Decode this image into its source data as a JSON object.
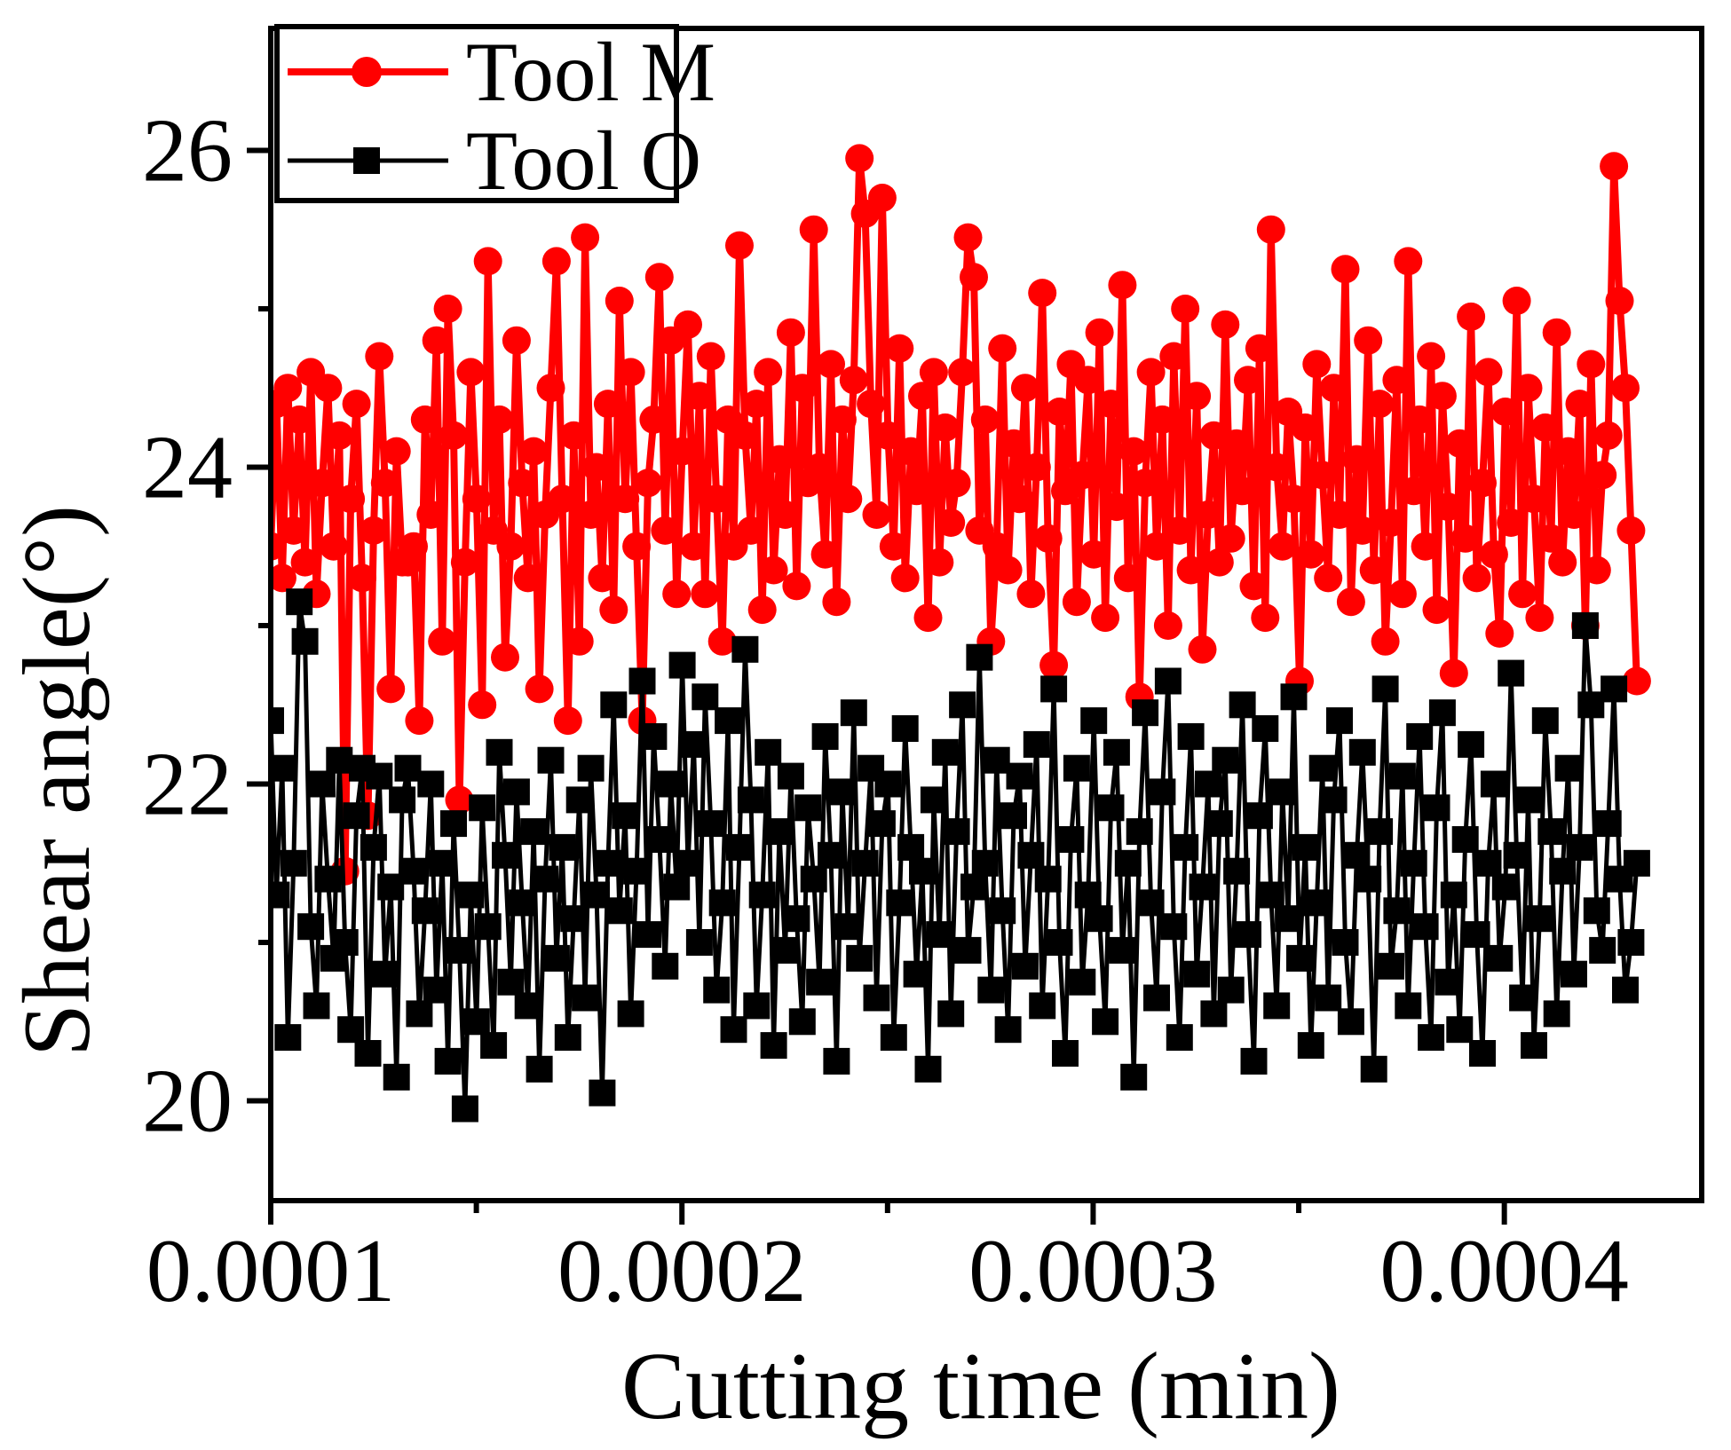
{
  "chart_data": {
    "type": "line",
    "title": "",
    "xlabel": "Cutting time (min)",
    "ylabel": "Shear angle(°)",
    "grid": false,
    "legend_position": "top-left-inside",
    "background": "#ffffff",
    "frame_color": "#000000",
    "x_axis": {
      "range": [
        0.0001,
        0.000448
      ],
      "major_ticks": [
        {
          "value": 0.0001,
          "label": "0.0001"
        },
        {
          "value": 0.0002,
          "label": "0.0002"
        },
        {
          "value": 0.0003,
          "label": "0.0003"
        },
        {
          "value": 0.0004,
          "label": "0.0004"
        }
      ],
      "minor_ticks": [
        0.00015,
        0.00025,
        0.00035
      ]
    },
    "y_axis": {
      "range": [
        19.37,
        26.77
      ],
      "major_ticks": [
        {
          "value": 26,
          "label": "26"
        },
        {
          "value": 24,
          "label": "24"
        },
        {
          "value": 22,
          "label": "22"
        },
        {
          "value": 20,
          "label": "20"
        }
      ],
      "minor_ticks": [
        25,
        23,
        21
      ]
    },
    "x_start": 0.0001,
    "x_step": 1.39e-06,
    "n_points": 240,
    "series": [
      {
        "name": "Tool M",
        "color": "#ff0000",
        "marker": "circle",
        "values": [
          23.5,
          24.4,
          23.3,
          24.5,
          23.6,
          24.3,
          23.4,
          24.6,
          23.2,
          23.9,
          24.5,
          23.5,
          24.2,
          21.45,
          23.8,
          24.4,
          23.3,
          21.8,
          23.6,
          24.7,
          23.9,
          22.6,
          24.1,
          23.4,
          23.4,
          23.5,
          22.4,
          24.3,
          23.7,
          24.8,
          22.9,
          25.0,
          24.2,
          21.9,
          23.4,
          24.6,
          23.8,
          22.5,
          25.3,
          23.6,
          24.3,
          22.8,
          23.5,
          24.8,
          23.9,
          23.3,
          24.1,
          22.6,
          23.7,
          24.5,
          25.3,
          23.8,
          22.4,
          24.2,
          22.9,
          25.45,
          23.7,
          24.0,
          23.3,
          24.4,
          23.1,
          25.05,
          23.8,
          24.6,
          23.5,
          22.4,
          23.9,
          24.3,
          25.2,
          23.6,
          24.8,
          23.2,
          24.1,
          24.9,
          23.5,
          24.45,
          23.2,
          24.7,
          23.8,
          22.9,
          24.3,
          23.5,
          25.4,
          24.2,
          23.6,
          24.4,
          23.1,
          24.6,
          23.35,
          24.05,
          23.7,
          24.85,
          23.25,
          24.5,
          23.9,
          25.5,
          24.0,
          23.45,
          24.65,
          23.15,
          24.3,
          23.8,
          24.55,
          25.95,
          25.6,
          24.4,
          23.7,
          25.7,
          24.2,
          23.5,
          24.75,
          23.3,
          24.1,
          23.85,
          24.45,
          23.05,
          24.6,
          23.4,
          24.25,
          23.65,
          23.9,
          24.6,
          25.45,
          25.2,
          23.6,
          24.3,
          22.9,
          23.5,
          24.75,
          23.35,
          24.15,
          23.8,
          24.5,
          23.2,
          24.0,
          25.1,
          23.55,
          22.75,
          24.35,
          23.85,
          24.65,
          23.15,
          23.95,
          24.55,
          23.45,
          24.85,
          23.05,
          24.4,
          23.75,
          25.15,
          23.3,
          24.1,
          22.55,
          23.9,
          24.6,
          23.5,
          24.3,
          23.0,
          24.7,
          23.6,
          25.0,
          23.35,
          24.45,
          22.85,
          23.7,
          24.2,
          23.4,
          24.9,
          23.55,
          24.15,
          23.85,
          24.55,
          23.25,
          24.75,
          23.05,
          25.5,
          24.0,
          23.5,
          24.35,
          23.8,
          22.65,
          24.25,
          23.45,
          24.65,
          23.95,
          23.3,
          24.5,
          23.7,
          25.25,
          23.15,
          24.05,
          23.6,
          24.8,
          23.35,
          24.4,
          22.9,
          23.65,
          24.55,
          23.2,
          25.3,
          23.85,
          24.3,
          23.5,
          24.7,
          23.1,
          24.45,
          23.75,
          22.7,
          24.15,
          23.55,
          24.95,
          23.3,
          23.9,
          24.6,
          23.45,
          22.95,
          24.35,
          23.65,
          25.05,
          23.2,
          24.5,
          23.8,
          23.05,
          24.25,
          23.55,
          24.85,
          23.4,
          24.1,
          23.7,
          24.4,
          23.0,
          24.65,
          23.35,
          23.95,
          24.2,
          25.9,
          25.05,
          24.5,
          23.6,
          22.65
        ]
      },
      {
        "name": "Tool O",
        "color": "#000000",
        "marker": "square",
        "values": [
          22.4,
          21.3,
          22.1,
          20.4,
          21.5,
          23.15,
          22.9,
          21.1,
          20.6,
          22.0,
          21.4,
          20.9,
          22.15,
          21.0,
          20.45,
          21.8,
          22.1,
          20.3,
          21.6,
          22.05,
          20.8,
          21.35,
          20.15,
          21.9,
          22.1,
          21.45,
          20.55,
          21.2,
          22.0,
          20.7,
          21.5,
          20.25,
          21.75,
          20.95,
          19.95,
          21.3,
          20.5,
          21.85,
          21.1,
          20.35,
          22.2,
          21.55,
          20.75,
          21.95,
          21.25,
          20.6,
          21.7,
          20.2,
          21.4,
          22.15,
          20.9,
          21.6,
          20.4,
          21.15,
          21.9,
          20.65,
          22.1,
          21.3,
          20.05,
          21.5,
          22.5,
          21.2,
          21.8,
          20.55,
          21.45,
          22.65,
          21.05,
          22.3,
          21.65,
          20.85,
          22.0,
          21.35,
          22.75,
          21.5,
          22.25,
          21.0,
          22.55,
          21.75,
          20.7,
          21.25,
          22.4,
          20.45,
          21.6,
          22.85,
          21.9,
          20.6,
          21.3,
          22.2,
          20.35,
          21.7,
          20.95,
          22.05,
          21.15,
          20.5,
          21.85,
          21.4,
          20.75,
          22.3,
          21.55,
          20.25,
          21.95,
          21.1,
          22.45,
          20.9,
          21.5,
          22.1,
          20.65,
          21.75,
          22.0,
          20.4,
          21.25,
          22.35,
          21.6,
          20.8,
          21.45,
          20.2,
          21.9,
          21.05,
          22.2,
          20.55,
          21.7,
          22.5,
          20.95,
          21.35,
          22.8,
          21.5,
          20.7,
          22.15,
          21.2,
          20.45,
          21.8,
          22.05,
          20.85,
          21.55,
          22.25,
          20.6,
          21.4,
          22.6,
          21.0,
          20.3,
          21.65,
          22.1,
          20.75,
          21.3,
          22.4,
          21.15,
          20.5,
          21.85,
          22.2,
          20.95,
          21.5,
          20.15,
          21.7,
          22.45,
          21.25,
          20.65,
          21.95,
          22.65,
          21.1,
          20.4,
          21.6,
          22.3,
          20.8,
          21.35,
          22.0,
          20.55,
          21.75,
          22.15,
          20.7,
          21.45,
          22.5,
          21.05,
          20.25,
          21.8,
          22.35,
          21.3,
          20.6,
          21.95,
          21.15,
          22.55,
          20.9,
          21.6,
          20.35,
          21.25,
          22.1,
          20.65,
          21.9,
          22.4,
          21.0,
          20.5,
          21.55,
          22.2,
          21.4,
          20.2,
          21.7,
          22.6,
          20.85,
          21.2,
          22.05,
          20.6,
          21.5,
          22.3,
          21.1,
          20.4,
          21.85,
          22.45,
          20.75,
          21.3,
          20.45,
          21.65,
          22.25,
          21.05,
          20.3,
          21.5,
          22.0,
          20.9,
          21.35,
          22.7,
          21.55,
          20.65,
          21.9,
          20.35,
          21.15,
          22.4,
          21.7,
          20.55,
          21.45,
          22.1,
          20.8,
          21.6,
          23.0,
          22.5,
          21.2,
          20.95,
          21.75,
          22.6,
          21.4,
          20.7,
          21.0,
          21.5
        ]
      }
    ]
  }
}
